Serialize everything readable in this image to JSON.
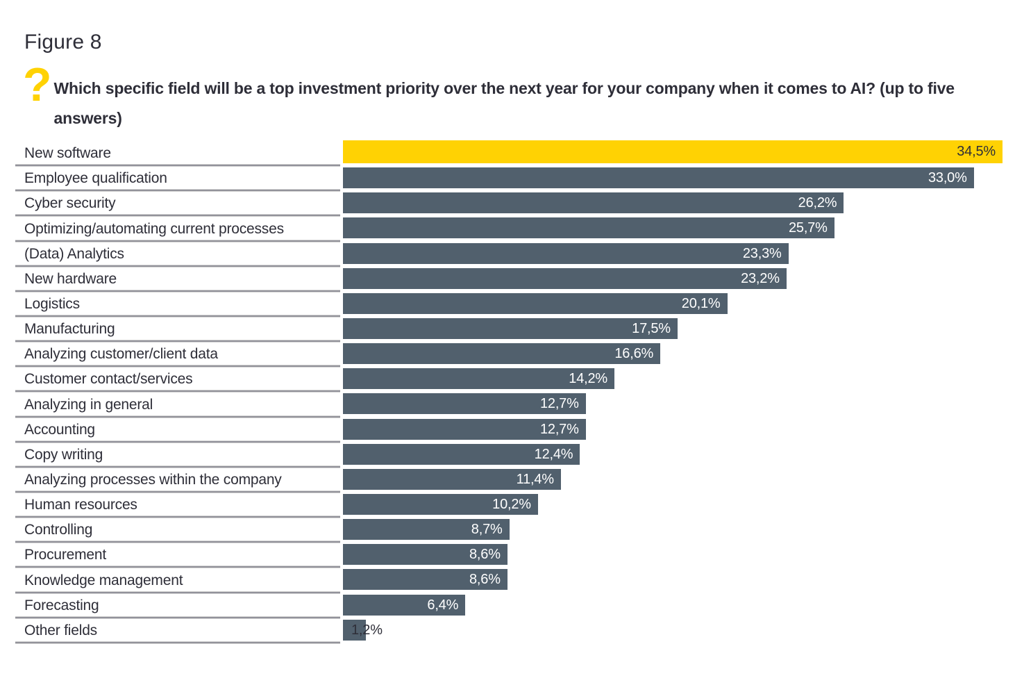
{
  "figure": {
    "title": "Figure 8",
    "question_icon": "?",
    "question": "Which specific field will be a top investment priority over the next year for your company when it comes to AI? (up to five answers)"
  },
  "colors": {
    "highlight_bar": "#FFD203",
    "bar": "#51606D",
    "text": "#2E2E38",
    "value_text": "#FFFFFF",
    "underline": "#92929A"
  },
  "chart_data": {
    "type": "bar",
    "orientation": "horizontal",
    "title": "Figure 8",
    "subtitle": "Which specific field will be a top investment priority over the next year for your company when it comes to AI? (up to five answers)",
    "xlabel": "",
    "ylabel": "",
    "xlim": [
      0,
      35.2
    ],
    "grid": false,
    "legend": false,
    "value_label_position": "inside-end",
    "value_label_format": "comma-decimal-percent",
    "highlight_index": 0,
    "categories": [
      "New software",
      "Employee qualification",
      "Cyber security",
      "Optimizing/automating current processes",
      "(Data) Analytics",
      "New hardware",
      "Logistics",
      "Manufacturing",
      "Analyzing customer/client data",
      "Customer contact/services",
      "Analyzing in general",
      "Accounting",
      "Copy writing",
      "Analyzing processes within the company",
      "Human resources",
      "Controlling",
      "Procurement",
      "Knowledge management",
      "Forecasting",
      "Other fields"
    ],
    "values": [
      34.5,
      33.0,
      26.2,
      25.7,
      23.3,
      23.2,
      20.1,
      17.5,
      16.6,
      14.2,
      12.7,
      12.7,
      12.4,
      11.4,
      10.2,
      8.7,
      8.6,
      8.6,
      6.4,
      1.2
    ],
    "value_labels": [
      "34,5%",
      "33,0%",
      "26,2%",
      "25,7%",
      "23,3%",
      "23,2%",
      "20,1%",
      "17,5%",
      "16,6%",
      "14,2%",
      "12,7%",
      "12,7%",
      "12,4%",
      "11,4%",
      "10,2%",
      "8,7%",
      "8,6%",
      "8,6%",
      "6,4%",
      "1,2%"
    ]
  }
}
